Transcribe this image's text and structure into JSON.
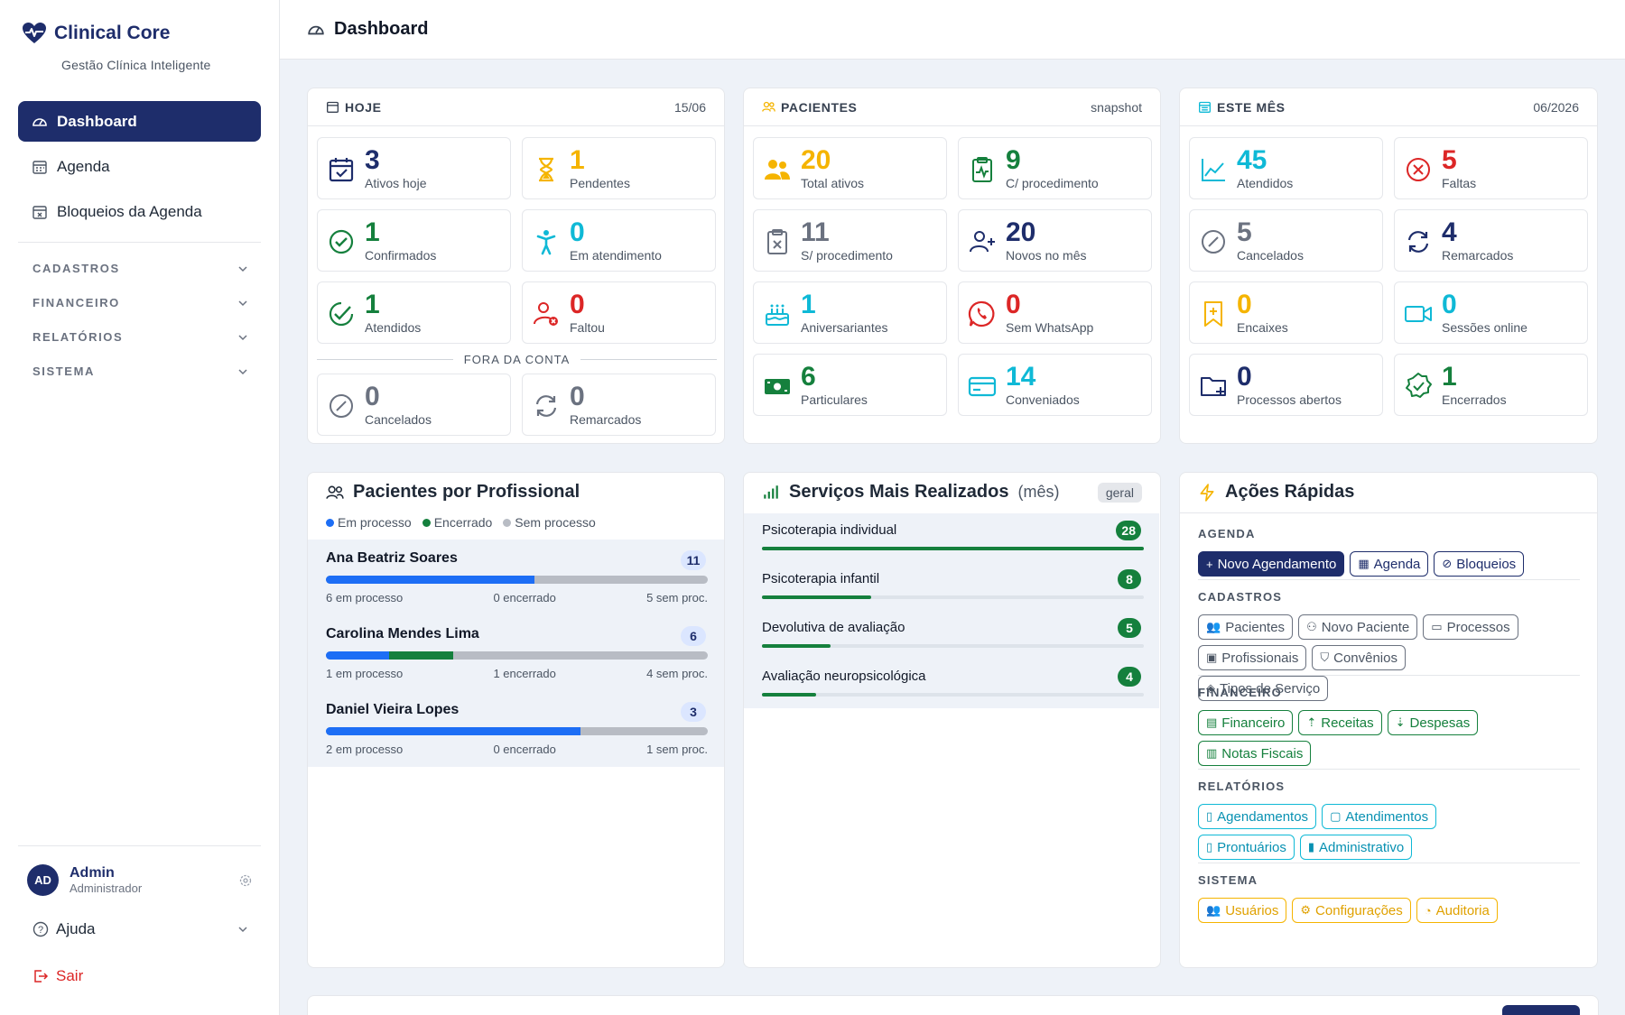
{
  "app": {
    "name": "Clinical Core",
    "subtitle": "Gestão Clínica Inteligente"
  },
  "sidebar": {
    "items": [
      {
        "label": "Dashboard",
        "icon": "gauge-icon",
        "active": true
      },
      {
        "label": "Agenda",
        "icon": "calendar-icon"
      },
      {
        "label": "Bloqueios da Agenda",
        "icon": "calendar-block-icon"
      }
    ],
    "groups": [
      "CADASTROS",
      "FINANCEIRO",
      "RELATÓRIOS",
      "SISTEMA"
    ],
    "user": {
      "initials": "AD",
      "name": "Admin",
      "role": "Administrador"
    },
    "help": "Ajuda",
    "logout": "Sair"
  },
  "header": {
    "title": "Dashboard"
  },
  "hoje": {
    "title": "HOJE",
    "date": "15/06",
    "stats": [
      {
        "num": "3",
        "label": "Ativos hoje",
        "color": "#1e2d6b",
        "icon": "calendar-check-icon"
      },
      {
        "num": "1",
        "label": "Pendentes",
        "color": "#f5b400",
        "icon": "hourglass-icon"
      },
      {
        "num": "1",
        "label": "Confirmados",
        "color": "#15803d",
        "icon": "check-circle-icon"
      },
      {
        "num": "0",
        "label": "Em atendimento",
        "color": "#0fb9d6",
        "icon": "person-icon"
      },
      {
        "num": "1",
        "label": "Atendidos",
        "color": "#15803d",
        "icon": "double-check-icon"
      },
      {
        "num": "0",
        "label": "Faltou",
        "color": "#dc2626",
        "icon": "user-x-icon"
      }
    ],
    "fora_label": "FORA DA CONTA",
    "fora": [
      {
        "num": "0",
        "label": "Cancelados",
        "color": "#6b7280",
        "icon": "slash-circle-icon"
      },
      {
        "num": "0",
        "label": "Remarcados",
        "color": "#6b7280",
        "icon": "refresh-icon"
      }
    ]
  },
  "pacientes": {
    "title": "PACIENTES",
    "meta": "snapshot",
    "stats": [
      {
        "num": "20",
        "label": "Total ativos",
        "color": "#f5b400",
        "icon": "users-icon"
      },
      {
        "num": "9",
        "label": "C/ procedimento",
        "color": "#15803d",
        "icon": "clipboard-pulse-icon"
      },
      {
        "num": "11",
        "label": "S/ procedimento",
        "color": "#6b7280",
        "icon": "clipboard-x-icon"
      },
      {
        "num": "20",
        "label": "Novos no mês",
        "color": "#1e2d6b",
        "icon": "user-plus-icon"
      },
      {
        "num": "1",
        "label": "Aniversariantes",
        "color": "#0fb9d6",
        "icon": "cake-icon"
      },
      {
        "num": "0",
        "label": "Sem WhatsApp",
        "color": "#dc2626",
        "icon": "whatsapp-icon"
      },
      {
        "num": "6",
        "label": "Particulares",
        "color": "#15803d",
        "icon": "cash-icon"
      },
      {
        "num": "14",
        "label": "Conveniados",
        "color": "#0fb9d6",
        "icon": "card-icon"
      }
    ]
  },
  "mes": {
    "title": "ESTE MÊS",
    "meta": "06/2026",
    "stats": [
      {
        "num": "45",
        "label": "Atendidos",
        "color": "#0fb9d6",
        "icon": "chart-line-icon"
      },
      {
        "num": "5",
        "label": "Faltas",
        "color": "#dc2626",
        "icon": "x-circle-icon"
      },
      {
        "num": "5",
        "label": "Cancelados",
        "color": "#6b7280",
        "icon": "slash-circle-icon"
      },
      {
        "num": "4",
        "label": "Remarcados",
        "color": "#1e2d6b",
        "icon": "refresh-icon"
      },
      {
        "num": "0",
        "label": "Encaixes",
        "color": "#f5b400",
        "icon": "bookmark-plus-icon"
      },
      {
        "num": "0",
        "label": "Sessões online",
        "color": "#0fb9d6",
        "icon": "video-icon"
      },
      {
        "num": "0",
        "label": "Processos abertos",
        "color": "#1e2d6b",
        "icon": "folder-plus-icon"
      },
      {
        "num": "1",
        "label": "Encerrados",
        "color": "#15803d",
        "icon": "badge-check-icon"
      }
    ]
  },
  "profissionais": {
    "title": "Pacientes por Profissional",
    "legend": [
      {
        "label": "Em processo",
        "color": "#1d6ef5"
      },
      {
        "label": "Encerrado",
        "color": "#15803d"
      },
      {
        "label": "Sem processo",
        "color": "#b8bcc4"
      }
    ],
    "rows": [
      {
        "name": "Ana Beatriz Soares",
        "count": "11",
        "em": 6,
        "enc": 0,
        "sem": 5,
        "em_label": "6 em processo",
        "enc_label": "0 encerrado",
        "sem_label": "5 sem proc."
      },
      {
        "name": "Carolina Mendes Lima",
        "count": "6",
        "em": 1,
        "enc": 1,
        "sem": 4,
        "em_label": "1 em processo",
        "enc_label": "1 encerrado",
        "sem_label": "4 sem proc."
      },
      {
        "name": "Daniel Vieira Lopes",
        "count": "3",
        "em": 2,
        "enc": 0,
        "sem": 1,
        "em_label": "2 em processo",
        "enc_label": "0 encerrado",
        "sem_label": "1 sem proc."
      }
    ]
  },
  "servicos": {
    "title": "Serviços Mais Realizados",
    "suffix": "(mês)",
    "badge": "geral",
    "rows": [
      {
        "name": "Psicoterapia individual",
        "count": 28
      },
      {
        "name": "Psicoterapia infantil",
        "count": 8
      },
      {
        "name": "Devolutiva de avaliação",
        "count": 5
      },
      {
        "name": "Avaliação neuropsicológica",
        "count": 4
      }
    ]
  },
  "acoes": {
    "title": "Ações Rápidas",
    "groups": [
      {
        "label": "AGENDA",
        "chips": [
          {
            "label": "Novo Agendamento",
            "style": "primary",
            "icon": "plus-icon"
          },
          {
            "label": "Agenda",
            "style": "navy",
            "icon": "calendar-icon"
          },
          {
            "label": "Bloqueios",
            "style": "navy",
            "icon": "slash-circle-icon"
          }
        ]
      },
      {
        "label": "CADASTROS",
        "chips": [
          {
            "label": "Pacientes",
            "style": "gray",
            "icon": "users-icon"
          },
          {
            "label": "Novo Paciente",
            "style": "gray",
            "icon": "user-plus-icon"
          },
          {
            "label": "Processos",
            "style": "gray",
            "icon": "folder-icon"
          },
          {
            "label": "Profissionais",
            "style": "gray",
            "icon": "id-badge-icon"
          },
          {
            "label": "Convênios",
            "style": "gray",
            "icon": "shield-icon"
          },
          {
            "label": "Tipos de Serviço",
            "style": "gray",
            "icon": "tag-icon"
          }
        ]
      },
      {
        "label": "FINANCEIRO",
        "chips": [
          {
            "label": "Financeiro",
            "style": "green",
            "icon": "cash-icon"
          },
          {
            "label": "Receitas",
            "style": "green",
            "icon": "arrow-up-circle-icon"
          },
          {
            "label": "Despesas",
            "style": "green",
            "icon": "arrow-down-circle-icon"
          },
          {
            "label": "Notas Fiscais",
            "style": "green",
            "icon": "receipt-icon"
          }
        ]
      },
      {
        "label": "RELATÓRIOS",
        "chips": [
          {
            "label": "Agendamentos",
            "style": "cyan",
            "icon": "doc-chart-icon"
          },
          {
            "label": "Atendimentos",
            "style": "cyan",
            "icon": "clipboard-icon"
          },
          {
            "label": "Prontuários",
            "style": "cyan",
            "icon": "file-icon"
          },
          {
            "label": "Administrativo",
            "style": "cyan",
            "icon": "bar-chart-icon"
          }
        ]
      },
      {
        "label": "SISTEMA",
        "chips": [
          {
            "label": "Usuários",
            "style": "yellow",
            "icon": "users-icon"
          },
          {
            "label": "Configurações",
            "style": "yellow",
            "icon": "gear-icon"
          },
          {
            "label": "Auditoria",
            "style": "yellow",
            "icon": "history-icon"
          }
        ]
      }
    ]
  }
}
